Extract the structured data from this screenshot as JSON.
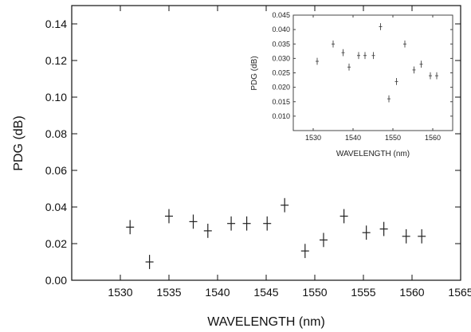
{
  "chart_data": [
    {
      "type": "scatter",
      "xlabel": "WAVELENGTH (nm)",
      "ylabel": "PDG (dB)",
      "xlim": [
        1525,
        1565
      ],
      "ylim": [
        0,
        0.15
      ],
      "xticks": [
        1530,
        1535,
        1540,
        1545,
        1550,
        1555,
        1560,
        1565
      ],
      "yticks": [
        0.0,
        0.02,
        0.04,
        0.06,
        0.08,
        0.1,
        0.12,
        0.14
      ],
      "ytick_labels": [
        "0.00",
        "0.02",
        "0.04",
        "0.06",
        "0.08",
        "0.10",
        "0.12",
        "0.14"
      ],
      "grid": false,
      "series": [
        {
          "x": [
            1531.0,
            1533.0,
            1535.0,
            1537.5,
            1539.0,
            1541.4,
            1543.0,
            1545.1,
            1546.9,
            1549.0,
            1550.9,
            1553.0,
            1555.3,
            1557.1,
            1559.4,
            1561.0
          ],
          "y": [
            0.029,
            0.01,
            0.035,
            0.032,
            0.027,
            0.031,
            0.031,
            0.031,
            0.041,
            0.016,
            0.022,
            0.035,
            0.026,
            0.028,
            0.024,
            0.024
          ],
          "yerr": [
            0.003,
            0.003,
            0.003,
            0.003,
            0.003,
            0.003,
            0.003,
            0.003,
            0.003,
            0.003,
            0.003,
            0.003,
            0.003,
            0.003,
            0.003,
            0.003
          ]
        }
      ]
    },
    {
      "type": "scatter",
      "inset": true,
      "xlabel": "WAVELENGTH (nm)",
      "ylabel": "PDG (dB)",
      "xlim": [
        1525,
        1565
      ],
      "ylim": [
        0.005,
        0.045
      ],
      "xticks": [
        1530,
        1540,
        1550,
        1560
      ],
      "yticks": [
        0.01,
        0.015,
        0.02,
        0.025,
        0.03,
        0.035,
        0.04,
        0.045
      ],
      "ytick_labels": [
        "0.010",
        "0.015",
        "0.020",
        "0.025",
        "0.030",
        "0.035",
        "0.040",
        "0.045"
      ],
      "grid": false,
      "series": [
        {
          "x": [
            1531.0,
            1535.0,
            1537.5,
            1539.0,
            1541.4,
            1543.0,
            1545.1,
            1546.9,
            1549.0,
            1550.9,
            1553.0,
            1555.3,
            1557.1,
            1559.4,
            1561.0
          ],
          "y": [
            0.029,
            0.035,
            0.032,
            0.027,
            0.031,
            0.031,
            0.031,
            0.041,
            0.016,
            0.022,
            0.035,
            0.026,
            0.028,
            0.024,
            0.024
          ],
          "yerr": [
            0.0008,
            0.0008,
            0.0008,
            0.0008,
            0.0008,
            0.0008,
            0.0008,
            0.0008,
            0.0008,
            0.0008,
            0.0008,
            0.0008,
            0.0008,
            0.0008,
            0.0008
          ]
        }
      ]
    }
  ]
}
